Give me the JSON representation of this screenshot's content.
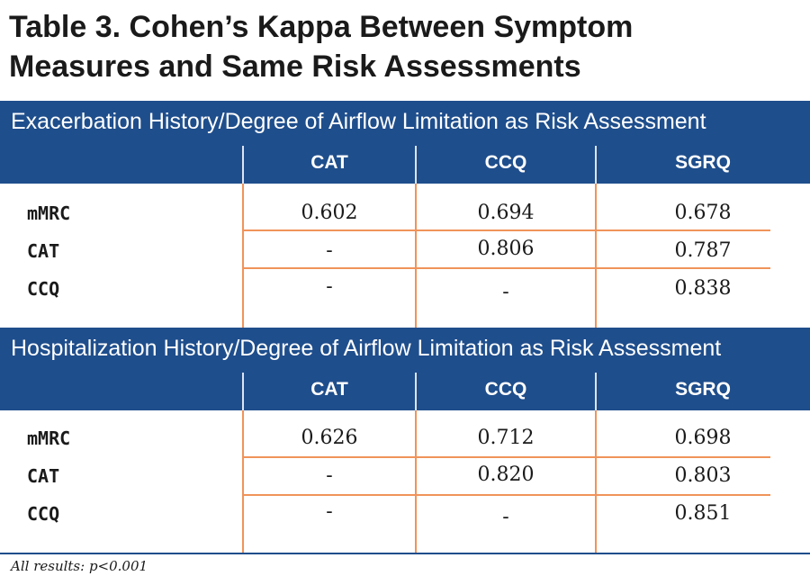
{
  "title": {
    "line1": "Table 3. Cohen’s Kappa Between Symptom",
    "line2": "Measures and Same Risk Assessments"
  },
  "columns": [
    "CAT",
    "CCQ",
    "SGRQ"
  ],
  "sections": [
    {
      "heading": "Exacerbation History/Degree of Airflow Limitation as Risk Assessment",
      "rows": [
        {
          "label": "mMRC",
          "values": [
            "0.602",
            "0.694",
            "0.678"
          ]
        },
        {
          "label": "CAT",
          "values": [
            "-",
            "0.806",
            "0.787"
          ]
        },
        {
          "label": "CCQ",
          "values": [
            "-",
            "-",
            "0.838"
          ]
        }
      ]
    },
    {
      "heading": "Hospitalization History/Degree of Airflow Limitation as Risk Assessment",
      "rows": [
        {
          "label": "mMRC",
          "values": [
            "0.626",
            "0.712",
            "0.698"
          ]
        },
        {
          "label": "CAT",
          "values": [
            "-",
            "0.820",
            "0.803"
          ]
        },
        {
          "label": "CCQ",
          "values": [
            "-",
            "-",
            "0.851"
          ]
        }
      ]
    }
  ],
  "footnote": "All results: p<0.001",
  "colors": {
    "header_band": "#1f4e8c",
    "grid_lines": "#f0935a",
    "text": "#1a1a1a"
  }
}
